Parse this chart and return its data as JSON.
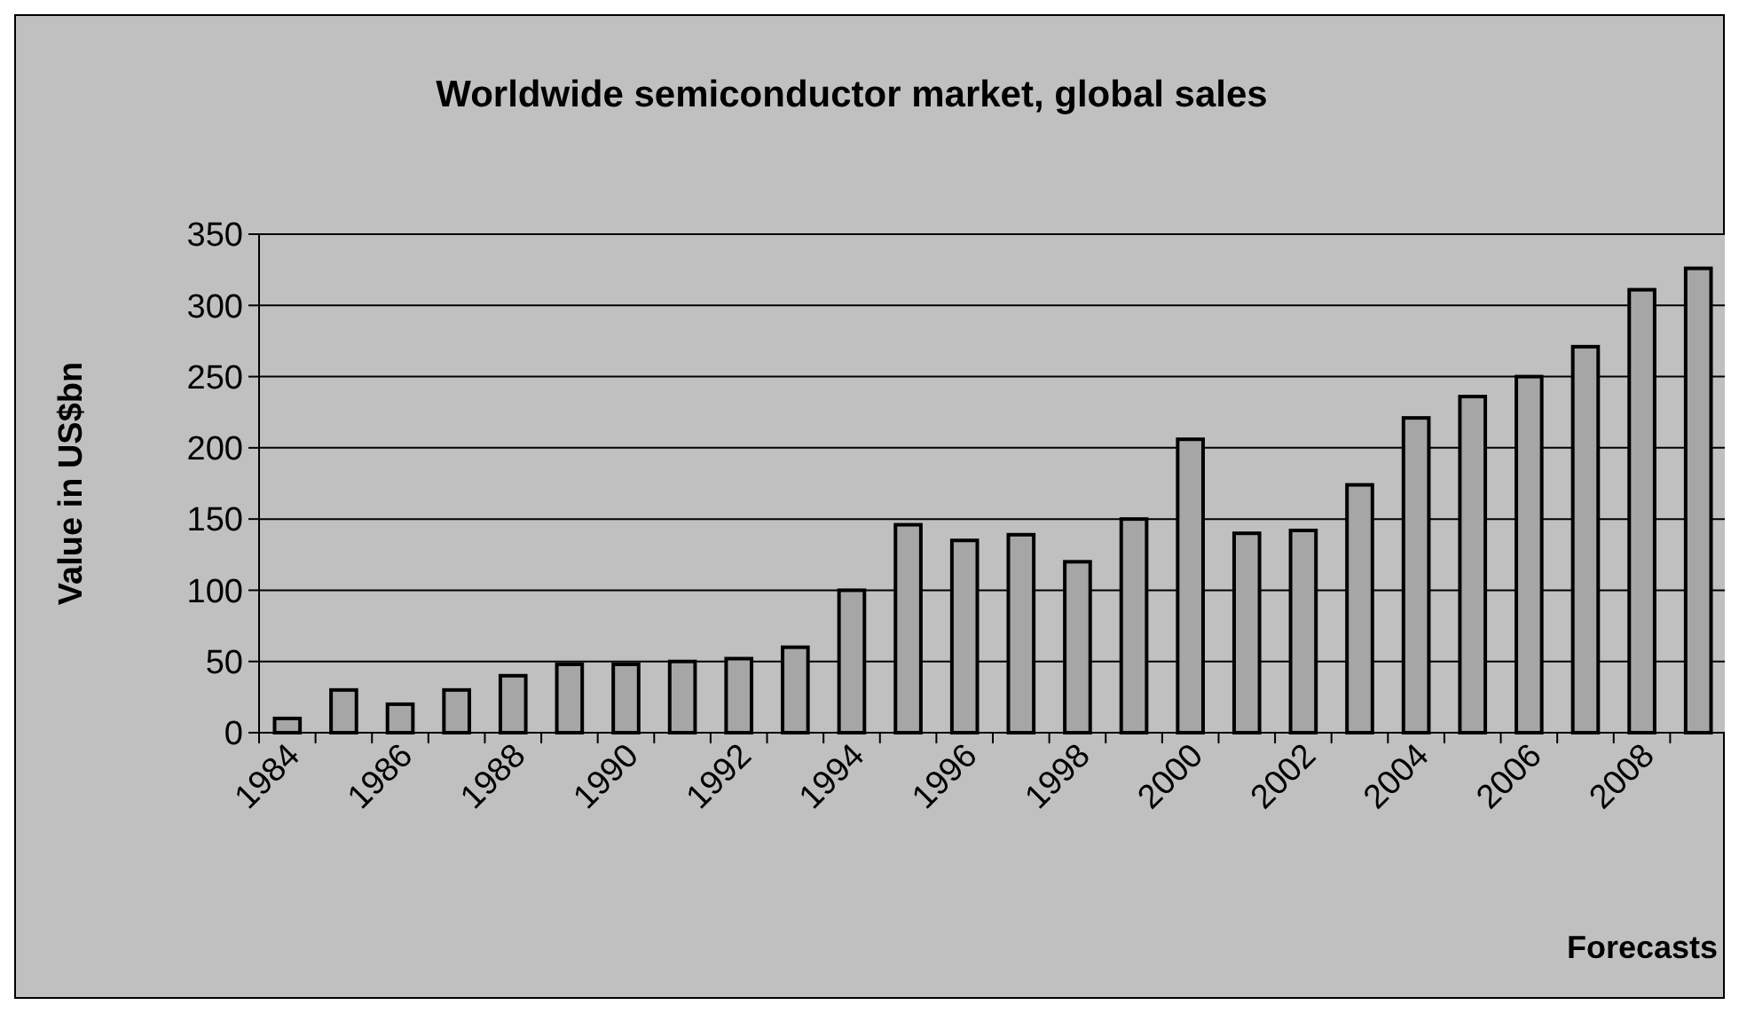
{
  "chart_data": {
    "type": "bar",
    "title": "Worldwide semiconductor market, global sales",
    "ylabel": "Value in US$bn",
    "categories": [
      "1984",
      null,
      "1986",
      null,
      "1988",
      null,
      "1990",
      null,
      "1992",
      null,
      "1994",
      null,
      "1996",
      null,
      "1998",
      null,
      "2000",
      null,
      "2002",
      null,
      "2004",
      null,
      "2006",
      null,
      "2008",
      null
    ],
    "values": [
      10,
      30,
      20,
      30,
      40,
      48,
      48,
      50,
      52,
      60,
      100,
      146,
      135,
      139,
      120,
      150,
      206,
      140,
      142,
      174,
      221,
      236,
      250,
      271,
      311,
      326
    ],
    "color": "#a6a6a6",
    "ylim": [
      0,
      350
    ],
    "yticks": [
      0,
      50,
      100,
      150,
      200,
      250,
      300,
      350
    ],
    "grid": "y",
    "annotations": [
      "Forecasts"
    ]
  }
}
